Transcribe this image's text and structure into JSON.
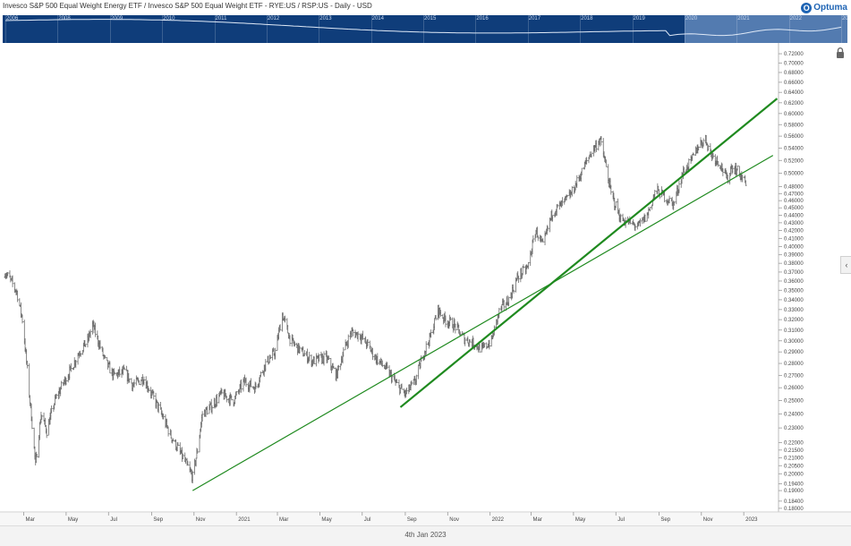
{
  "header": {
    "title": "Invesco S&P 500 Equal Weight Energy ETF / Invesco S&P 500 Equal Weight ETF - RYE:US / RSP:US - Daily - USD",
    "logo_text": "Optuma"
  },
  "overview": {
    "years": [
      "2006",
      "2008",
      "2009",
      "2010",
      "2011",
      "2012",
      "2013",
      "2014",
      "2015",
      "2016",
      "2017",
      "2018",
      "2019",
      "2020",
      "2021",
      "2022",
      "2023"
    ],
    "highlight_from_year": "2020"
  },
  "footer": {
    "date_label": "4th Jan 2023"
  },
  "icons": {
    "lock": "lock-icon",
    "collapse": "chevron-left-icon",
    "logo": "optuma-logo-icon"
  },
  "colors": {
    "bars": "#6b6b6b",
    "trendline": "#1f8a1f",
    "navigator": "#0f3d7a"
  },
  "chart_data": {
    "type": "ohlc",
    "scale": "log",
    "x_tick_labels": [
      "Mar",
      "May",
      "Jul",
      "Sep",
      "Nov",
      "2021",
      "Mar",
      "May",
      "Jul",
      "Sep",
      "Nov",
      "2022",
      "Mar",
      "May",
      "Jul",
      "Sep",
      "Nov",
      "2023"
    ],
    "y_tick_labels": [
      "0.72000",
      "0.70000",
      "0.68000",
      "0.66000",
      "0.64000",
      "0.62000",
      "0.60000",
      "0.58000",
      "0.56000",
      "0.54000",
      "0.52000",
      "0.50000",
      "0.48000",
      "0.47000",
      "0.46000",
      "0.45000",
      "0.44000",
      "0.43000",
      "0.42000",
      "0.41000",
      "0.40000",
      "0.39000",
      "0.38000",
      "0.37000",
      "0.36000",
      "0.35000",
      "0.34000",
      "0.33000",
      "0.32000",
      "0.31000",
      "0.30000",
      "0.29000",
      "0.28000",
      "0.27000",
      "0.26000",
      "0.25000",
      "0.24000",
      "0.23000",
      "0.22000",
      "0.21500",
      "0.21000",
      "0.20500",
      "0.20000",
      "0.19400",
      "0.19000",
      "0.18400",
      "0.18000"
    ],
    "ylim": [
      0.178,
      0.74
    ],
    "x_start": "2020-02-01",
    "x_end": "2023-02-20",
    "price_path": [
      [
        "2020-02-03",
        0.37
      ],
      [
        "2020-02-10",
        0.362
      ],
      [
        "2020-02-20",
        0.348
      ],
      [
        "2020-02-28",
        0.32
      ],
      [
        "2020-03-09",
        0.255
      ],
      [
        "2020-03-18",
        0.205
      ],
      [
        "2020-03-26",
        0.24
      ],
      [
        "2020-04-03",
        0.228
      ],
      [
        "2020-04-15",
        0.25
      ],
      [
        "2020-04-28",
        0.265
      ],
      [
        "2020-05-08",
        0.275
      ],
      [
        "2020-05-20",
        0.29
      ],
      [
        "2020-06-01",
        0.3
      ],
      [
        "2020-06-08",
        0.315
      ],
      [
        "2020-06-16",
        0.3
      ],
      [
        "2020-06-26",
        0.282
      ],
      [
        "2020-07-08",
        0.27
      ],
      [
        "2020-07-24",
        0.273
      ],
      [
        "2020-08-05",
        0.262
      ],
      [
        "2020-08-20",
        0.268
      ],
      [
        "2020-09-01",
        0.255
      ],
      [
        "2020-09-15",
        0.24
      ],
      [
        "2020-09-28",
        0.225
      ],
      [
        "2020-10-10",
        0.215
      ],
      [
        "2020-10-22",
        0.205
      ],
      [
        "2020-10-30",
        0.198
      ],
      [
        "2020-11-06",
        0.215
      ],
      [
        "2020-11-13",
        0.24
      ],
      [
        "2020-11-25",
        0.245
      ],
      [
        "2020-12-10",
        0.255
      ],
      [
        "2020-12-28",
        0.25
      ],
      [
        "2021-01-12",
        0.265
      ],
      [
        "2021-01-28",
        0.26
      ],
      [
        "2021-02-12",
        0.28
      ],
      [
        "2021-02-26",
        0.29
      ],
      [
        "2021-03-08",
        0.325
      ],
      [
        "2021-03-20",
        0.3
      ],
      [
        "2021-04-05",
        0.29
      ],
      [
        "2021-04-20",
        0.282
      ],
      [
        "2021-05-10",
        0.285
      ],
      [
        "2021-05-25",
        0.27
      ],
      [
        "2021-06-05",
        0.292
      ],
      [
        "2021-06-15",
        0.308
      ],
      [
        "2021-06-28",
        0.305
      ],
      [
        "2021-07-10",
        0.295
      ],
      [
        "2021-07-20",
        0.285
      ],
      [
        "2021-08-05",
        0.275
      ],
      [
        "2021-08-20",
        0.262
      ],
      [
        "2021-09-01",
        0.255
      ],
      [
        "2021-09-15",
        0.265
      ],
      [
        "2021-09-28",
        0.29
      ],
      [
        "2021-10-08",
        0.305
      ],
      [
        "2021-10-18",
        0.33
      ],
      [
        "2021-10-28",
        0.32
      ],
      [
        "2021-11-10",
        0.315
      ],
      [
        "2021-11-25",
        0.302
      ],
      [
        "2021-12-08",
        0.298
      ],
      [
        "2021-12-20",
        0.292
      ],
      [
        "2022-01-03",
        0.3
      ],
      [
        "2022-01-15",
        0.33
      ],
      [
        "2022-01-28",
        0.34
      ],
      [
        "2022-02-10",
        0.365
      ],
      [
        "2022-02-24",
        0.375
      ],
      [
        "2022-03-08",
        0.42
      ],
      [
        "2022-03-18",
        0.4
      ],
      [
        "2022-04-01",
        0.445
      ],
      [
        "2022-04-15",
        0.455
      ],
      [
        "2022-04-28",
        0.47
      ],
      [
        "2022-05-12",
        0.5
      ],
      [
        "2022-05-25",
        0.53
      ],
      [
        "2022-06-08",
        0.555
      ],
      [
        "2022-06-14",
        0.525
      ],
      [
        "2022-06-24",
        0.47
      ],
      [
        "2022-07-08",
        0.435
      ],
      [
        "2022-07-20",
        0.43
      ],
      [
        "2022-08-02",
        0.425
      ],
      [
        "2022-08-15",
        0.44
      ],
      [
        "2022-08-28",
        0.475
      ],
      [
        "2022-09-10",
        0.465
      ],
      [
        "2022-09-22",
        0.455
      ],
      [
        "2022-10-05",
        0.5
      ],
      [
        "2022-10-18",
        0.52
      ],
      [
        "2022-10-28",
        0.545
      ],
      [
        "2022-11-07",
        0.555
      ],
      [
        "2022-11-15",
        0.53
      ],
      [
        "2022-11-28",
        0.515
      ],
      [
        "2022-12-08",
        0.49
      ],
      [
        "2022-12-14",
        0.51
      ],
      [
        "2022-12-22",
        0.505
      ],
      [
        "2023-01-04",
        0.485
      ]
    ],
    "trendlines": [
      {
        "from": [
          "2020-10-30",
          0.19
        ],
        "to": [
          "2023-02-12",
          0.528
        ],
        "width": 1.2
      },
      {
        "from": [
          "2021-08-25",
          0.245
        ],
        "to": [
          "2023-02-18",
          0.628
        ],
        "width": 2.2
      }
    ]
  }
}
